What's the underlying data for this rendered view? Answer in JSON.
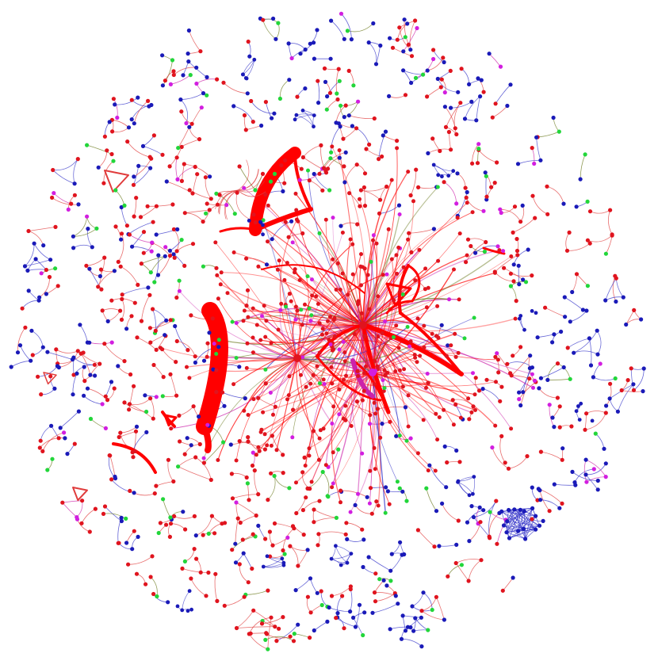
{
  "graph": {
    "layout": "force-directed-circular",
    "background_color": "#ffffff",
    "node_colors": {
      "community_a": "#e0141e",
      "community_b": "#1a1ab8",
      "community_c": "#22d63a",
      "community_d": "#d21ee0"
    },
    "edge_colors": {
      "strong": "#ff0000",
      "medium": "#e03c3c",
      "blue": "#3232c8",
      "magenta": "#cc22aa",
      "olive": "#6b7a1e"
    },
    "hub_count": 3,
    "heavy_cluster_count": 4,
    "dense_blue_cluster_count": 1
  }
}
